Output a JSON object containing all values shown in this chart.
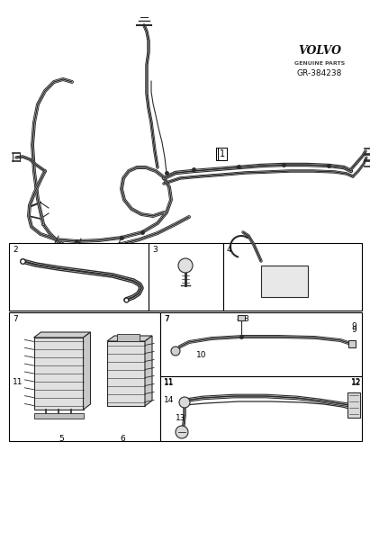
{
  "background_color": "#ffffff",
  "wire_color": "#2a2a2a",
  "part_number": "GR-384238",
  "volvo_text": "VOLVO",
  "genuine_parts": "GENUINE PARTS",
  "figsize": [
    4.11,
    6.01
  ],
  "dpi": 100
}
